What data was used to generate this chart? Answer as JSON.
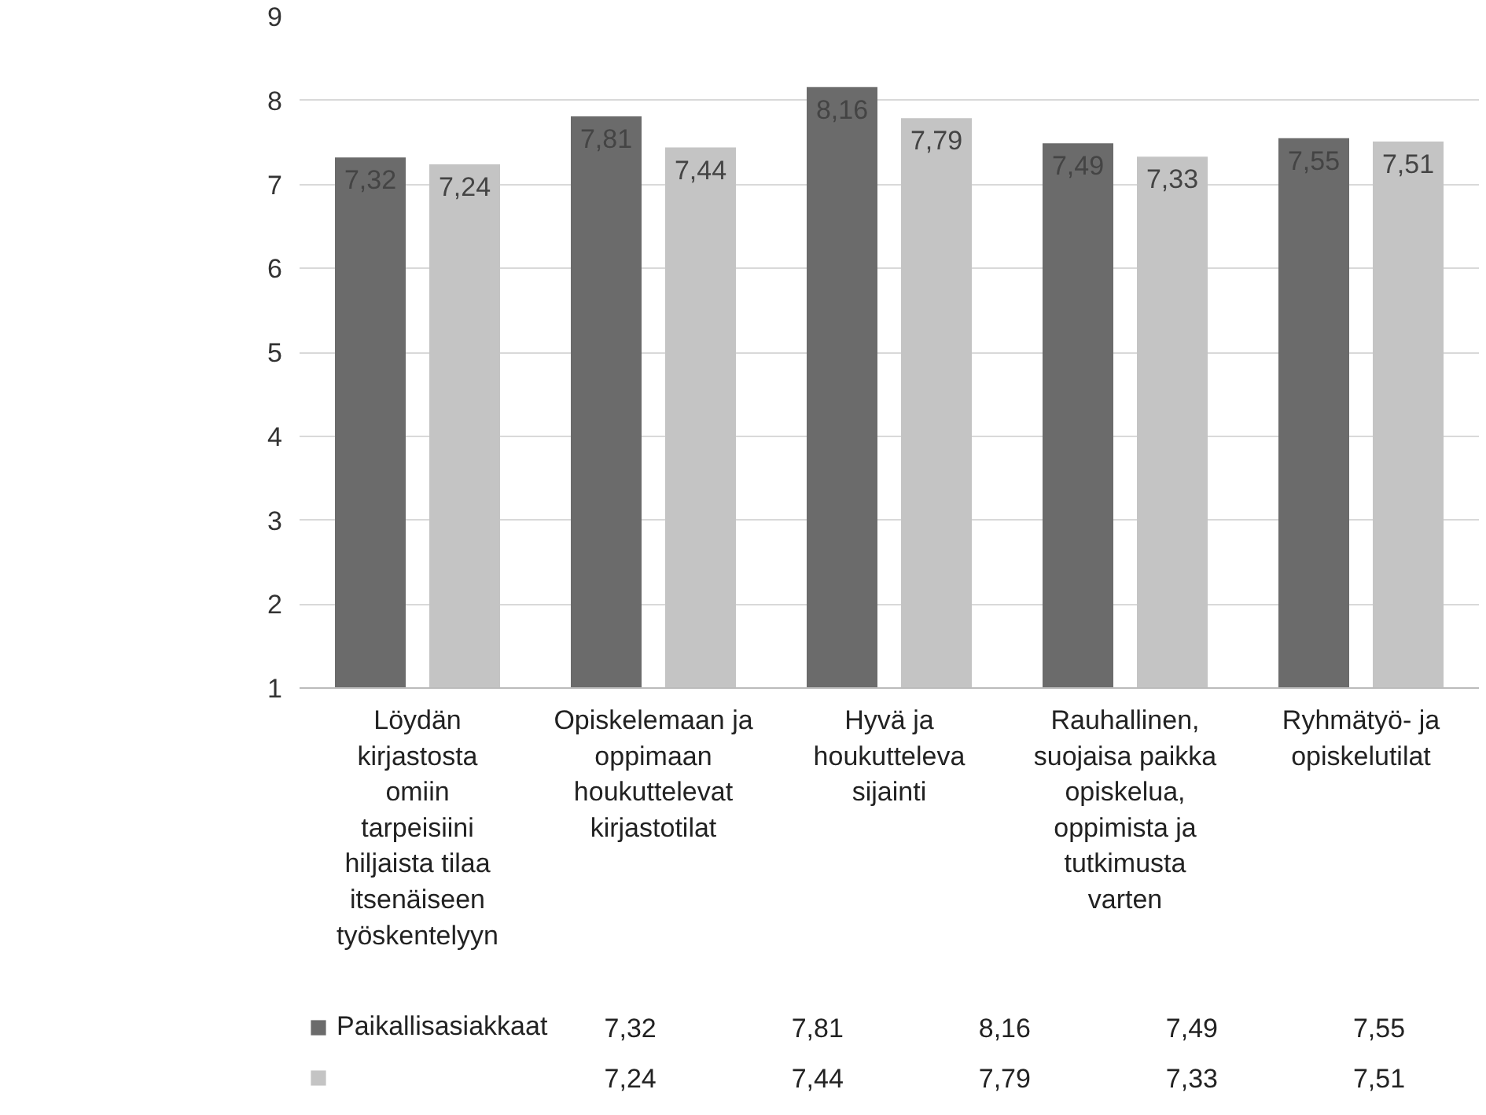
{
  "chart_data": {
    "type": "bar",
    "categories": [
      "Löydän kirjastosta omiin tarpeisiini hiljaista tilaa itsenäiseen työskentelyyn",
      "Opiskelemaan ja oppimaan houkuttelevat kirjastotilat",
      "Hyvä ja houkutteleva sijainti",
      "Rauhallinen, suojaisa paikka opiskelua, oppimista ja tutkimusta varten",
      "Ryhmätyö- ja opiskelutilat"
    ],
    "series": [
      {
        "name": "Paikallisasiakkaat",
        "color": "#6b6b6b",
        "values": [
          7.32,
          7.81,
          8.16,
          7.49,
          7.55
        ],
        "value_labels": [
          "7,32",
          "7,81",
          "8,16",
          "7,49",
          "7,55"
        ]
      },
      {
        "color": "#c4c4c4",
        "values": [
          7.24,
          7.44,
          7.79,
          7.33,
          7.51
        ],
        "value_labels": [
          "7,24",
          "7,44",
          "7,79",
          "7,33",
          "7,51"
        ]
      }
    ],
    "ylim": [
      1,
      9
    ],
    "yticks": [
      1,
      2,
      3,
      4,
      5,
      6,
      7,
      8,
      9
    ],
    "grid": "y",
    "legend": "bottom"
  }
}
